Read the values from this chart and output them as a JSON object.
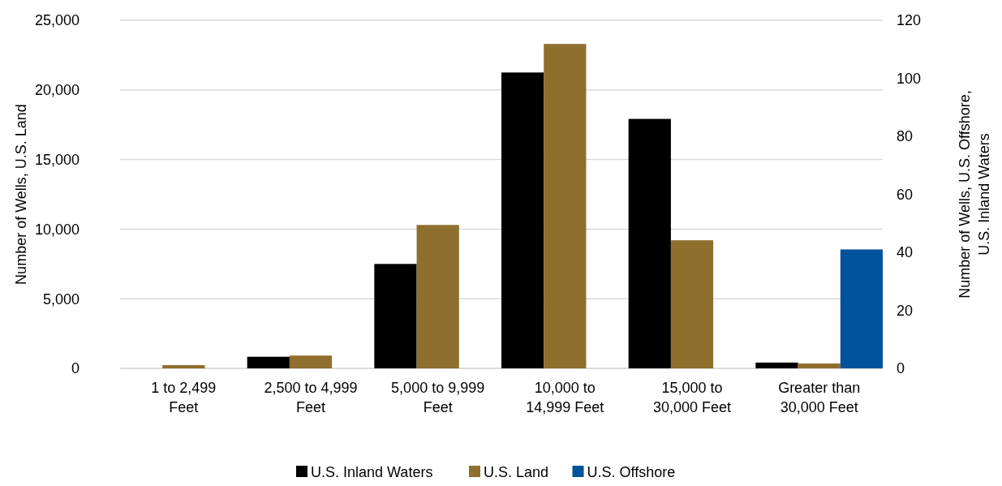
{
  "chart_data": {
    "type": "bar",
    "categories": [
      "1 to 2,499 Feet",
      "2,500 to 4,999 Feet",
      "5,000 to 9,999 Feet",
      "10,000 to 14,999 Feet",
      "15,000 to 30,000 Feet",
      "Greater than 30,000 Feet"
    ],
    "ylabel": "Number of Wells, U.S. Land",
    "y2label": "Number of Wells, U.S. Offshore, U.S. Inland Waters",
    "ylim": [
      0,
      25000
    ],
    "yticks": [
      {
        "value": 0,
        "label": "0"
      },
      {
        "value": 5000,
        "label": "5,000"
      },
      {
        "value": 10000,
        "label": "10,000"
      },
      {
        "value": 15000,
        "label": "15,000"
      },
      {
        "value": 20000,
        "label": "20,000"
      },
      {
        "value": 25000,
        "label": "25,000"
      }
    ],
    "y2lim": [
      0,
      120
    ],
    "y2ticks": [
      0,
      20,
      40,
      60,
      80,
      100,
      120
    ],
    "series": [
      {
        "name": "U.S. Inland Waters",
        "color": "#000000",
        "axis": "y2",
        "values": [
          0,
          4,
          36,
          102,
          86,
          2
        ]
      },
      {
        "name": "U.S. Land",
        "color": "#8f6f2d",
        "values": [
          230,
          920,
          10300,
          23300,
          9200,
          350
        ]
      },
      {
        "name": "U.S. Offshore",
        "color": "#00539b",
        "axis": "y2",
        "values": [
          0,
          0,
          0,
          0,
          0,
          41
        ]
      }
    ],
    "grid": "y",
    "legend": "bottom"
  }
}
